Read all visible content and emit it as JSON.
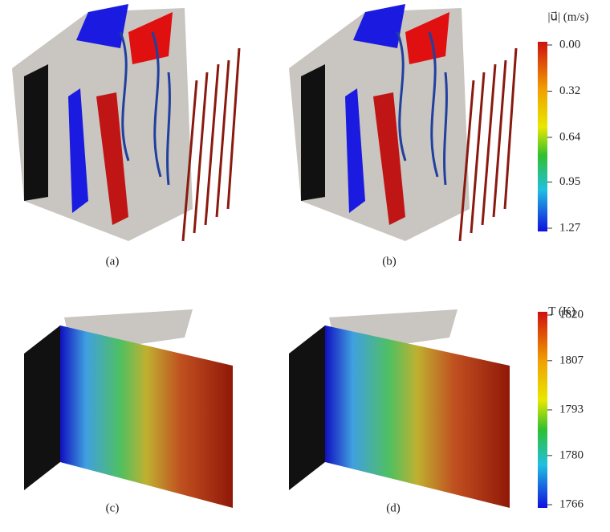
{
  "panels": [
    {
      "label": "(a)"
    },
    {
      "label": "(b)"
    },
    {
      "label": "(c)"
    },
    {
      "label": "(d)"
    }
  ],
  "colorbars": [
    {
      "title": "|u⃗| (m/s)",
      "lim": [
        0,
        1.27
      ],
      "ticks": [
        {
          "value": 0,
          "label": "0.00"
        },
        0.32,
        0.64,
        0.95,
        1.27
      ]
    },
    {
      "title": "T (K)",
      "lim": [
        1766,
        1820
      ],
      "ticks": [
        1820,
        1807,
        1793,
        1780,
        1766
      ]
    }
  ]
}
